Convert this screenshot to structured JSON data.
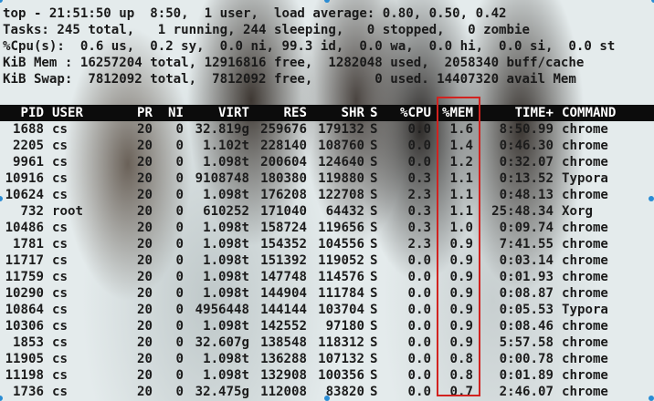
{
  "summary": {
    "line1": "top - 21:51:50 up  8:50,  1 user,  load average: 0.80, 0.50, 0.42",
    "line2": "Tasks: 245 total,   1 running, 244 sleeping,   0 stopped,   0 zombie",
    "line3": "%Cpu(s):  0.6 us,  0.2 sy,  0.0 ni, 99.3 id,  0.0 wa,  0.0 hi,  0.0 si,  0.0 st",
    "line4": "KiB Mem : 16257204 total, 12916816 free,  1282048 used,  2058340 buff/cache",
    "line5": "KiB Swap:  7812092 total,  7812092 free,        0 used. 14407320 avail Mem"
  },
  "columns": [
    "PID",
    "USER",
    "PR",
    "NI",
    "VIRT",
    "RES",
    "SHR",
    "S",
    "%CPU",
    "%MEM",
    "TIME+",
    "COMMAND"
  ],
  "rows": [
    [
      "1688",
      "cs",
      "20",
      "0",
      "32.819g",
      "259676",
      "179132",
      "S",
      "0.0",
      "1.6",
      "8:50.99",
      "chrome"
    ],
    [
      "2205",
      "cs",
      "20",
      "0",
      "1.102t",
      "228140",
      "108760",
      "S",
      "0.0",
      "1.4",
      "0:46.30",
      "chrome"
    ],
    [
      "9961",
      "cs",
      "20",
      "0",
      "1.098t",
      "200604",
      "124640",
      "S",
      "0.0",
      "1.2",
      "0:32.07",
      "chrome"
    ],
    [
      "10916",
      "cs",
      "20",
      "0",
      "9108748",
      "180380",
      "119880",
      "S",
      "0.3",
      "1.1",
      "0:13.52",
      "Typora"
    ],
    [
      "10624",
      "cs",
      "20",
      "0",
      "1.098t",
      "176208",
      "122708",
      "S",
      "2.3",
      "1.1",
      "0:48.13",
      "chrome"
    ],
    [
      "732",
      "root",
      "20",
      "0",
      "610252",
      "171040",
      "64432",
      "S",
      "0.3",
      "1.1",
      "25:48.34",
      "Xorg"
    ],
    [
      "10486",
      "cs",
      "20",
      "0",
      "1.098t",
      "158724",
      "119656",
      "S",
      "0.3",
      "1.0",
      "0:09.74",
      "chrome"
    ],
    [
      "1781",
      "cs",
      "20",
      "0",
      "1.098t",
      "154352",
      "104556",
      "S",
      "2.3",
      "0.9",
      "7:41.55",
      "chrome"
    ],
    [
      "11717",
      "cs",
      "20",
      "0",
      "1.098t",
      "151392",
      "119052",
      "S",
      "0.0",
      "0.9",
      "0:03.14",
      "chrome"
    ],
    [
      "11759",
      "cs",
      "20",
      "0",
      "1.098t",
      "147748",
      "114576",
      "S",
      "0.0",
      "0.9",
      "0:01.93",
      "chrome"
    ],
    [
      "10290",
      "cs",
      "20",
      "0",
      "1.098t",
      "144904",
      "111784",
      "S",
      "0.0",
      "0.9",
      "0:08.87",
      "chrome"
    ],
    [
      "10864",
      "cs",
      "20",
      "0",
      "4956448",
      "144144",
      "103704",
      "S",
      "0.0",
      "0.9",
      "0:05.53",
      "Typora"
    ],
    [
      "10306",
      "cs",
      "20",
      "0",
      "1.098t",
      "142552",
      "97180",
      "S",
      "0.0",
      "0.9",
      "0:08.46",
      "chrome"
    ],
    [
      "1853",
      "cs",
      "20",
      "0",
      "32.607g",
      "138548",
      "118312",
      "S",
      "0.0",
      "0.9",
      "5:57.58",
      "chrome"
    ],
    [
      "11905",
      "cs",
      "20",
      "0",
      "1.098t",
      "136288",
      "107132",
      "S",
      "0.0",
      "0.8",
      "0:00.78",
      "chrome"
    ],
    [
      "11198",
      "cs",
      "20",
      "0",
      "1.098t",
      "132908",
      "100356",
      "S",
      "0.0",
      "0.8",
      "0:01.89",
      "chrome"
    ],
    [
      "1736",
      "cs",
      "20",
      "0",
      "32.475g",
      "112008",
      "83820",
      "S",
      "0.0",
      "0.7",
      "2:46.07",
      "chrome"
    ]
  ],
  "colors": {
    "highlight": "#d2221f",
    "header_bg": "#0c0c0c",
    "selection_handle": "#2a8cd4"
  }
}
